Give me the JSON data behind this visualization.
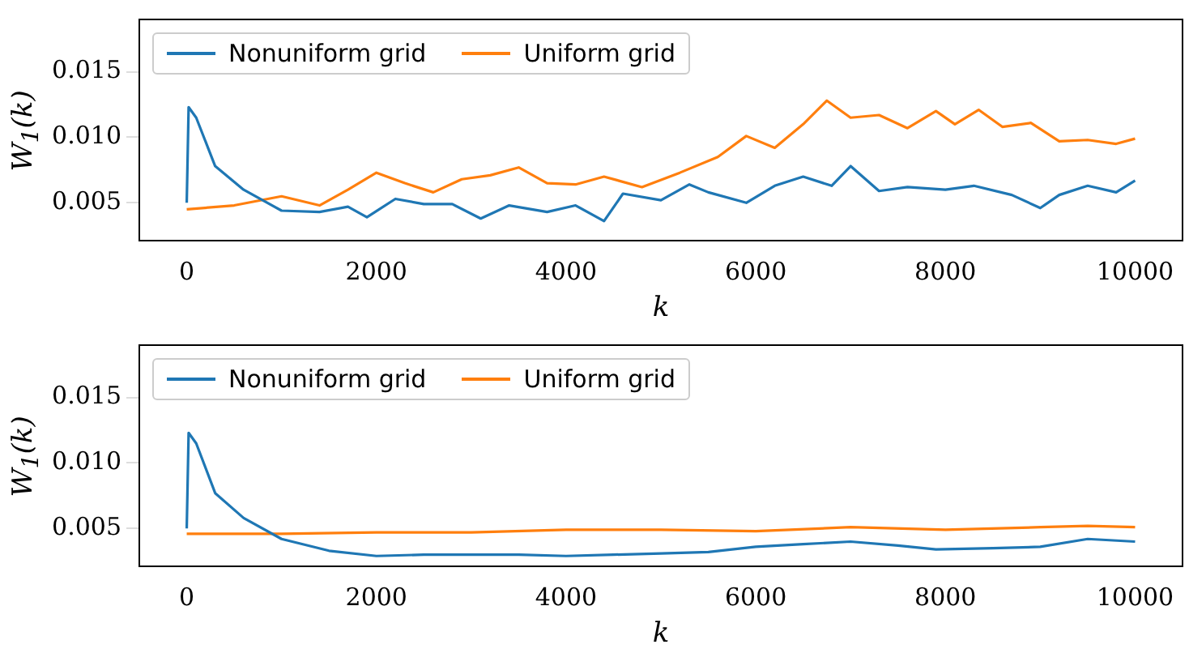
{
  "chart_data": [
    {
      "type": "line",
      "xlabel": "k",
      "ylabel": "W$_{1}$(k)",
      "xlim": [
        -500,
        10500
      ],
      "ylim": [
        0.0021,
        0.019
      ],
      "xticks": [
        0,
        2000,
        4000,
        6000,
        8000,
        10000
      ],
      "yticks": [
        {
          "value": 0.005,
          "label": "0.005"
        },
        {
          "value": 0.01,
          "label": "0.010"
        },
        {
          "value": 0.015,
          "label": "0.015"
        }
      ],
      "legend": "top left",
      "grid": false,
      "marker": "none",
      "line_style": "solid",
      "series": [
        {
          "name": "Nonuniform grid",
          "color": "#1f77b4",
          "x": [
            0,
            20,
            100,
            300,
            600,
            1000,
            1400,
            1700,
            1900,
            2200,
            2500,
            2800,
            3100,
            3400,
            3800,
            4100,
            4400,
            4600,
            5000,
            5300,
            5500,
            5900,
            6200,
            6500,
            6800,
            7000,
            7300,
            7600,
            8000,
            8300,
            8700,
            9000,
            9200,
            9500,
            9800,
            10000
          ],
          "values": [
            0.005,
            0.0123,
            0.0115,
            0.0078,
            0.006,
            0.0044,
            0.0043,
            0.0047,
            0.0039,
            0.0053,
            0.0049,
            0.0049,
            0.0038,
            0.0048,
            0.0043,
            0.0048,
            0.0036,
            0.0057,
            0.0052,
            0.0064,
            0.0058,
            0.005,
            0.0063,
            0.007,
            0.0063,
            0.0078,
            0.0059,
            0.0062,
            0.006,
            0.0063,
            0.0056,
            0.0046,
            0.0056,
            0.0063,
            0.0058,
            0.0067
          ]
        },
        {
          "name": "Uniform grid",
          "color": "#ff7f0e",
          "x": [
            0,
            500,
            1000,
            1400,
            1700,
            2000,
            2300,
            2600,
            2900,
            3200,
            3500,
            3800,
            4100,
            4400,
            4800,
            5200,
            5600,
            5900,
            6200,
            6500,
            6750,
            7000,
            7300,
            7600,
            7900,
            8100,
            8350,
            8600,
            8900,
            9200,
            9500,
            9800,
            10000
          ],
          "values": [
            0.0045,
            0.0048,
            0.0055,
            0.0048,
            0.006,
            0.0073,
            0.0065,
            0.0058,
            0.0068,
            0.0071,
            0.0077,
            0.0065,
            0.0064,
            0.007,
            0.0062,
            0.0073,
            0.0085,
            0.0101,
            0.0092,
            0.011,
            0.0128,
            0.0115,
            0.0117,
            0.0107,
            0.012,
            0.011,
            0.0121,
            0.0108,
            0.0111,
            0.0097,
            0.0098,
            0.0095,
            0.0099
          ]
        }
      ]
    },
    {
      "type": "line",
      "xlabel": "k",
      "ylabel": "W$_{1}$(k)",
      "xlim": [
        -500,
        10500
      ],
      "ylim": [
        0.0021,
        0.019
      ],
      "xticks": [
        0,
        2000,
        4000,
        6000,
        8000,
        10000
      ],
      "yticks": [
        {
          "value": 0.005,
          "label": "0.005"
        },
        {
          "value": 0.01,
          "label": "0.010"
        },
        {
          "value": 0.015,
          "label": "0.015"
        }
      ],
      "legend": "top left",
      "grid": false,
      "marker": "none",
      "line_style": "solid",
      "series": [
        {
          "name": "Nonuniform grid",
          "color": "#1f77b4",
          "x": [
            0,
            20,
            100,
            300,
            600,
            1000,
            1500,
            2000,
            2500,
            3000,
            3500,
            4000,
            4500,
            5000,
            5500,
            6000,
            6500,
            7000,
            7500,
            7900,
            8500,
            9000,
            9500,
            10000
          ],
          "values": [
            0.005,
            0.0123,
            0.0115,
            0.0077,
            0.0058,
            0.0042,
            0.0033,
            0.0029,
            0.003,
            0.003,
            0.003,
            0.0029,
            0.003,
            0.0031,
            0.0032,
            0.0036,
            0.0038,
            0.004,
            0.0037,
            0.0034,
            0.0035,
            0.0036,
            0.0042,
            0.004
          ]
        },
        {
          "name": "Uniform grid",
          "color": "#ff7f0e",
          "x": [
            0,
            1000,
            2000,
            3000,
            4000,
            5000,
            6000,
            7000,
            8000,
            9000,
            9500,
            10000
          ],
          "values": [
            0.0046,
            0.0046,
            0.0047,
            0.0047,
            0.0049,
            0.0049,
            0.0048,
            0.0051,
            0.0049,
            0.0051,
            0.0052,
            0.0051
          ]
        }
      ]
    }
  ]
}
